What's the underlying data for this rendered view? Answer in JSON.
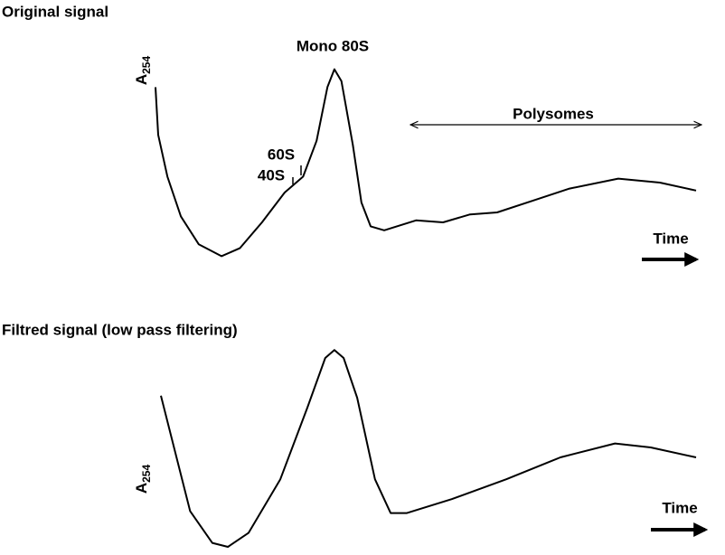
{
  "chart_data": [
    {
      "type": "line",
      "title": "Original signal",
      "y_label": "A",
      "y_label_subscript": "254",
      "annotations": [
        "Mono 80S",
        "60S",
        "40S",
        "Polysomes",
        "Time"
      ],
      "x": [
        0,
        0.5,
        2.2,
        4.7,
        8,
        12.2,
        15.6,
        19.7,
        23.9,
        27.3,
        29.8,
        31.8,
        33.1,
        34.4,
        36.5,
        38.1,
        39.8,
        42.3,
        48.2,
        53.2,
        58.2,
        63.2,
        69.9,
        76.6,
        85.6,
        93.3,
        100
      ],
      "series": [
        {
          "color": "#000000",
          "values": [
            88,
            64,
            43,
            23,
            9,
            3,
            7,
            20,
            35,
            43,
            61,
            88,
            97,
            91,
            59,
            30,
            18,
            16,
            21,
            20,
            24,
            25,
            31,
            37,
            42,
            40,
            36
          ]
        }
      ],
      "xlim": [
        0,
        100
      ],
      "ylim": [
        0,
        100
      ]
    },
    {
      "type": "line",
      "title": "Filtred signal (low pass filtering)",
      "y_label": "A",
      "y_label_subscript": "254",
      "annotations": [
        "Time"
      ],
      "x": [
        1,
        6.4,
        10.5,
        13.4,
        17.2,
        23.1,
        28.1,
        31.4,
        33.1,
        34.8,
        37.3,
        40.6,
        43.5,
        46.5,
        54.8,
        64.9,
        74.9,
        85,
        91.6,
        100
      ],
      "series": [
        {
          "color": "#000000",
          "values": [
            76,
            18,
            2,
            0,
            7,
            34,
            70,
            95,
            99,
            95,
            75,
            34,
            17,
            17,
            24,
            34,
            45,
            52,
            50,
            45
          ]
        }
      ],
      "xlim": [
        0,
        100
      ],
      "ylim": [
        0,
        100
      ]
    }
  ]
}
